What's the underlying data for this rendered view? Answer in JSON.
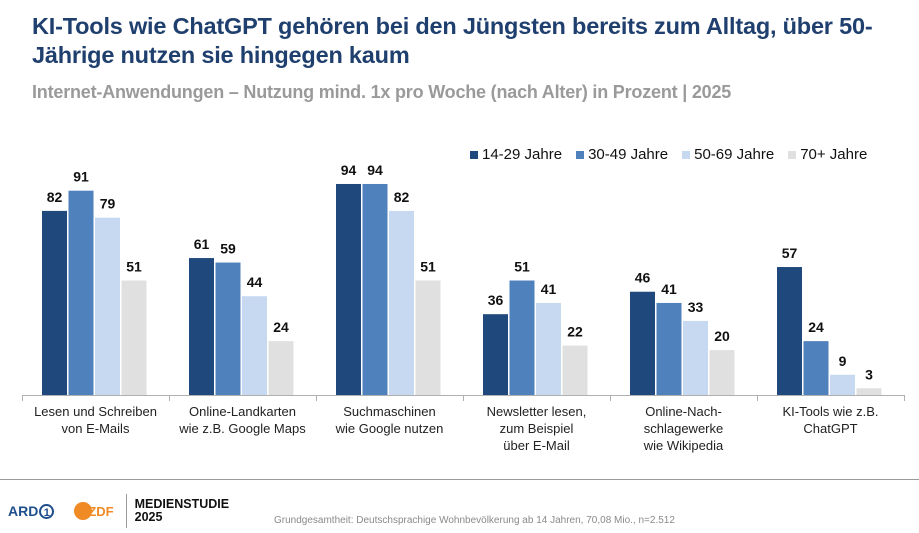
{
  "header": {
    "title": "KI-Tools wie ChatGPT gehören bei den Jüngsten bereits zum Alltag, über 50-Jährige nutzen sie hingegen kaum",
    "subtitle": "Internet-Anwendungen – Nutzung mind. 1x pro Woche (nach Alter) in Prozent | 2025"
  },
  "chart_data": {
    "type": "bar",
    "title": "KI-Tools wie ChatGPT gehören bei den Jüngsten bereits zum Alltag, über 50-Jährige nutzen sie hingegen kaum",
    "subtitle": "Internet-Anwendungen – Nutzung mind. 1x pro Woche (nach Alter) in Prozent | 2025",
    "xlabel": "",
    "ylabel": "",
    "ylim": [
      0,
      100
    ],
    "grid": false,
    "legend_position": "top-right",
    "categories": [
      [
        "Lesen und Schreiben",
        "von E-Mails"
      ],
      [
        "Online-Landkarten",
        "wie z.B. Google Maps"
      ],
      [
        "Suchmaschinen",
        "wie Google nutzen"
      ],
      [
        "Newsletter lesen,",
        "zum Beispiel",
        "über E-Mail"
      ],
      [
        "Online-Nach-",
        "schlagewerke",
        "wie Wikipedia"
      ],
      [
        "KI-Tools wie z.B.",
        "ChatGPT"
      ]
    ],
    "series": [
      {
        "name": "14-29 Jahre",
        "color": "#1f497d",
        "values": [
          82,
          61,
          94,
          36,
          46,
          57
        ]
      },
      {
        "name": "30-49 Jahre",
        "color": "#4f81bd",
        "values": [
          91,
          59,
          94,
          51,
          41,
          24
        ]
      },
      {
        "name": "50-69 Jahre",
        "color": "#c6d9f0",
        "values": [
          79,
          44,
          82,
          41,
          33,
          9
        ]
      },
      {
        "name": "70+ Jahre",
        "color": "#e0e0e0",
        "values": [
          51,
          24,
          51,
          22,
          20,
          3
        ]
      }
    ]
  },
  "footer": {
    "ard_label": "ARD",
    "ard_number": "1",
    "zdf_label": "ZDF",
    "study_line1": "MEDIENSTUDIE",
    "study_line2": "2025",
    "source": "Grundgesamtheit: Deutschsprachige Wohnbevölkerung ab 14 Jahren, 70,08 Mio., n=2.512"
  }
}
